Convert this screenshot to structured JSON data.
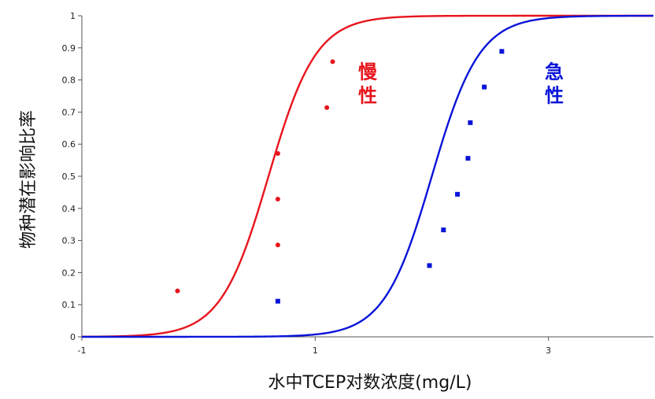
{
  "chart_data": {
    "type": "scatter",
    "xlabel": "水中TCEP对数浓度(mg/L)",
    "ylabel": "物种潜在影响比率",
    "xlim": [
      -1,
      3.9
    ],
    "ylim": [
      0,
      1
    ],
    "x_ticks": [
      -1,
      1,
      3
    ],
    "x_tick_labels": [
      "-1",
      "1",
      "3"
    ],
    "y_ticks": [
      0,
      0.1,
      0.2,
      0.3,
      0.4,
      0.5,
      0.6,
      0.7,
      0.8,
      0.9,
      1
    ],
    "y_tick_labels": [
      "0",
      "0.1",
      "0.2",
      "0.3",
      "0.4",
      "0.5",
      "0.6",
      "0.7",
      "0.8",
      "0.9",
      "1"
    ],
    "grid": false,
    "legend": "none",
    "series": [
      {
        "key": "chronic",
        "color": "#e8141c",
        "marker": "circle",
        "points": [
          {
            "x": -0.18,
            "y": 0.143
          },
          {
            "x": 0.68,
            "y": 0.286
          },
          {
            "x": 0.68,
            "y": 0.429
          },
          {
            "x": 0.68,
            "y": 0.571
          },
          {
            "x": 1.1,
            "y": 0.714
          },
          {
            "x": 1.15,
            "y": 0.857
          }
        ],
        "fit": {
          "model": "logistic",
          "x50": 0.6,
          "slope": 4.9
        }
      },
      {
        "key": "acute",
        "color": "#0a14d8",
        "marker": "square",
        "points": [
          {
            "x": 0.68,
            "y": 0.111
          },
          {
            "x": 1.98,
            "y": 0.222
          },
          {
            "x": 2.1,
            "y": 0.333
          },
          {
            "x": 2.22,
            "y": 0.444
          },
          {
            "x": 2.31,
            "y": 0.556
          },
          {
            "x": 2.33,
            "y": 0.667
          },
          {
            "x": 2.45,
            "y": 0.778
          },
          {
            "x": 2.6,
            "y": 0.889
          }
        ],
        "fit": {
          "model": "logistic",
          "x50": 2.0,
          "slope": 4.9
        }
      }
    ],
    "annotations": [
      {
        "text_lines": [
          "慢",
          "性"
        ],
        "color": "#e8141c",
        "x": 1.45,
        "y": 0.8
      },
      {
        "text_lines": [
          "急",
          "性"
        ],
        "color": "#0a14d8",
        "x": 3.05,
        "y": 0.8
      }
    ]
  }
}
